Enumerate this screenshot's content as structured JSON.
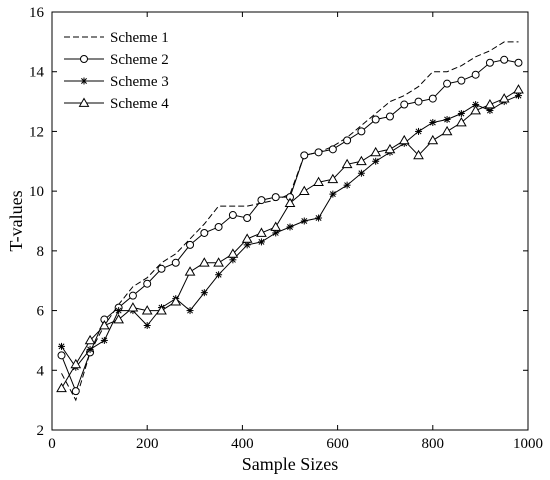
{
  "chart_data": {
    "type": "line",
    "xlabel": "Sample Sizes",
    "ylabel": "T-values",
    "xlim": [
      0,
      1000
    ],
    "ylim": [
      2,
      16
    ],
    "xticks": [
      0,
      200,
      400,
      600,
      800,
      1000
    ],
    "yticks": [
      2,
      4,
      6,
      8,
      10,
      12,
      14,
      16
    ],
    "grid": false,
    "legend_position": "top-left",
    "series": [
      {
        "name": "Scheme 1",
        "style": "dashed",
        "marker": "none",
        "x": [
          20,
          50,
          80,
          110,
          140,
          170,
          200,
          230,
          260,
          290,
          320,
          350,
          380,
          410,
          440,
          470,
          500,
          530,
          560,
          590,
          620,
          650,
          680,
          710,
          740,
          770,
          800,
          830,
          860,
          890,
          920,
          950,
          980
        ],
        "y": [
          3.9,
          3.0,
          4.6,
          5.5,
          6.2,
          6.8,
          7.1,
          7.6,
          7.9,
          8.4,
          8.9,
          9.5,
          9.5,
          9.5,
          9.6,
          9.7,
          9.9,
          11.2,
          11.3,
          11.5,
          11.8,
          12.2,
          12.6,
          13.0,
          13.2,
          13.5,
          14.0,
          14.0,
          14.2,
          14.5,
          14.7,
          15.0,
          15.0
        ]
      },
      {
        "name": "Scheme 2",
        "style": "solid",
        "marker": "circle",
        "x": [
          20,
          50,
          80,
          110,
          140,
          170,
          200,
          230,
          260,
          290,
          320,
          350,
          380,
          410,
          440,
          470,
          500,
          530,
          560,
          590,
          620,
          650,
          680,
          710,
          740,
          770,
          800,
          830,
          860,
          890,
          920,
          950,
          980
        ],
        "y": [
          4.5,
          3.3,
          4.6,
          5.7,
          6.1,
          6.5,
          6.9,
          7.4,
          7.6,
          8.2,
          8.6,
          8.8,
          9.2,
          9.1,
          9.7,
          9.8,
          9.8,
          11.2,
          11.3,
          11.4,
          11.7,
          12.0,
          12.4,
          12.5,
          12.9,
          13.0,
          13.1,
          13.6,
          13.7,
          13.9,
          14.3,
          14.4,
          14.3
        ]
      },
      {
        "name": "Scheme 3",
        "style": "solid",
        "marker": "star",
        "x": [
          20,
          50,
          80,
          110,
          140,
          170,
          200,
          230,
          260,
          290,
          320,
          350,
          380,
          410,
          440,
          470,
          500,
          530,
          560,
          590,
          620,
          650,
          680,
          710,
          740,
          770,
          800,
          830,
          860,
          890,
          920,
          950,
          980
        ],
        "y": [
          4.8,
          4.1,
          4.7,
          5.0,
          6.0,
          6.0,
          5.5,
          6.1,
          6.4,
          6.0,
          6.6,
          7.2,
          7.7,
          8.2,
          8.3,
          8.6,
          8.8,
          9.0,
          9.1,
          9.9,
          10.2,
          10.6,
          11.0,
          11.3,
          11.6,
          12.0,
          12.3,
          12.4,
          12.6,
          12.9,
          12.7,
          13.0,
          13.2
        ]
      },
      {
        "name": "Scheme 4",
        "style": "solid",
        "marker": "triangle",
        "x": [
          20,
          50,
          80,
          110,
          140,
          170,
          200,
          230,
          260,
          290,
          320,
          350,
          380,
          410,
          440,
          470,
          500,
          530,
          560,
          590,
          620,
          650,
          680,
          710,
          740,
          770,
          800,
          830,
          860,
          890,
          920,
          950,
          980
        ],
        "y": [
          3.4,
          4.2,
          5.0,
          5.5,
          5.7,
          6.1,
          6.0,
          6.0,
          6.3,
          7.3,
          7.6,
          7.6,
          7.9,
          8.4,
          8.6,
          8.8,
          9.6,
          10.0,
          10.3,
          10.4,
          10.9,
          11.0,
          11.3,
          11.4,
          11.7,
          11.2,
          11.7,
          12.0,
          12.3,
          12.7,
          12.9,
          13.1,
          13.4
        ]
      }
    ]
  }
}
